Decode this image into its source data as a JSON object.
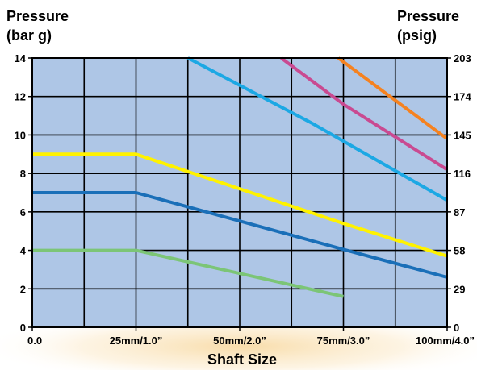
{
  "chart_data": {
    "type": "line",
    "title": "",
    "ylabel_left": [
      "Pressure",
      "(bar g)"
    ],
    "ylabel_right": [
      "Pressure",
      "(psig)"
    ],
    "xlabel": "Shaft Size",
    "xlim": [
      0,
      4
    ],
    "ylim": [
      0,
      14
    ],
    "grid": true,
    "background_color": "#aec6e6",
    "glow_color": "#f7d69a",
    "x_tick_labels": [
      {
        "x": 0,
        "label": "0.0"
      },
      {
        "x": 1,
        "label": "25mm/1.0”"
      },
      {
        "x": 2,
        "label": "50mm/2.0”"
      },
      {
        "x": 3,
        "label": "75mm/3.0”"
      },
      {
        "x": 4,
        "label": "100mm/4.0”"
      }
    ],
    "y_ticks_left": [
      0,
      2,
      4,
      6,
      8,
      10,
      12,
      14
    ],
    "y_ticks_right": [
      {
        "y": 0,
        "label": "0"
      },
      {
        "y": 2,
        "label": "29"
      },
      {
        "y": 4,
        "label": "58"
      },
      {
        "y": 6,
        "label": "87"
      },
      {
        "y": 8,
        "label": "116"
      },
      {
        "y": 10,
        "label": "145"
      },
      {
        "y": 12,
        "label": "174"
      },
      {
        "y": 14,
        "label": "203"
      }
    ],
    "series": [
      {
        "color": "#7cc576",
        "points": [
          [
            0,
            4
          ],
          [
            1,
            4
          ],
          [
            3,
            1.6
          ]
        ]
      },
      {
        "color": "#1a6fb8",
        "points": [
          [
            0,
            7
          ],
          [
            1,
            7
          ],
          [
            3,
            4.05
          ],
          [
            4,
            2.6
          ]
        ]
      },
      {
        "color": "#fff200",
        "points": [
          [
            0,
            9
          ],
          [
            1,
            9
          ],
          [
            3,
            5.4
          ],
          [
            4,
            3.7
          ]
        ]
      },
      {
        "color": "#1ca8e4",
        "points": [
          [
            1.5,
            14
          ],
          [
            2.7,
            10.6
          ],
          [
            4,
            6.6
          ]
        ]
      },
      {
        "color": "#c94a91",
        "points": [
          [
            2.4,
            14
          ],
          [
            3.0,
            11.6
          ],
          [
            4,
            8.2
          ]
        ]
      },
      {
        "color": "#f58220",
        "points": [
          [
            2.95,
            14
          ],
          [
            4,
            9.8
          ]
        ]
      }
    ]
  }
}
